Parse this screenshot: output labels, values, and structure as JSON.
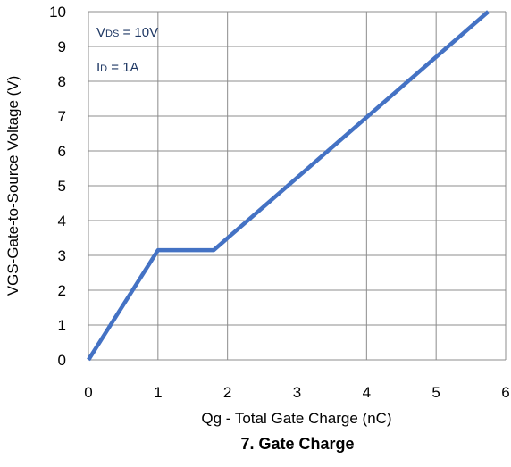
{
  "chart_data": {
    "type": "line",
    "title": "7. Gate Charge",
    "xlabel": "Qg - Total Gate Charge (nC)",
    "ylabel": "VGS-Gate-to-Source Voltage (V)",
    "xlim": [
      0,
      6
    ],
    "ylim": [
      0,
      10
    ],
    "x_ticks": [
      0,
      1,
      2,
      3,
      4,
      5,
      6
    ],
    "y_ticks": [
      0,
      1,
      2,
      3,
      4,
      5,
      6,
      7,
      8,
      9,
      10
    ],
    "grid": true,
    "series": [
      {
        "x": [
          0,
          1.0,
          1.8,
          5.75
        ],
        "y": [
          0,
          3.15,
          3.15,
          10.0
        ]
      }
    ],
    "annotations": [
      {
        "prefix": "V",
        "subscript": "DS",
        "suffix": " = 10V"
      },
      {
        "prefix": "I",
        "subscript": "D",
        "suffix": " = 1A"
      }
    ],
    "colors": {
      "line": "#4472C4",
      "grid": "#8c8c8c",
      "annotation": "#1f3864",
      "text": "#000000"
    }
  }
}
